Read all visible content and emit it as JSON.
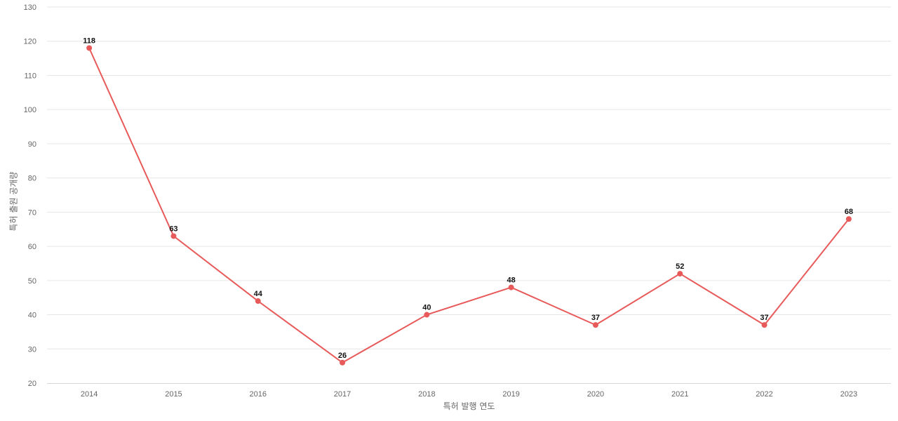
{
  "chart_data": {
    "type": "line",
    "title": "",
    "xlabel": "특허 발행 연도",
    "ylabel": "특허 출원 공개량",
    "categories": [
      "2014",
      "2015",
      "2016",
      "2017",
      "2018",
      "2019",
      "2020",
      "2021",
      "2022",
      "2023"
    ],
    "values": [
      118,
      63,
      44,
      26,
      40,
      48,
      37,
      52,
      37,
      68
    ],
    "ylim": [
      20,
      130
    ],
    "yticks": [
      20,
      30,
      40,
      50,
      60,
      70,
      80,
      90,
      100,
      110,
      120,
      130
    ],
    "grid": true,
    "legend": "none",
    "data_labels": true,
    "series_color": "#e85a5a"
  }
}
